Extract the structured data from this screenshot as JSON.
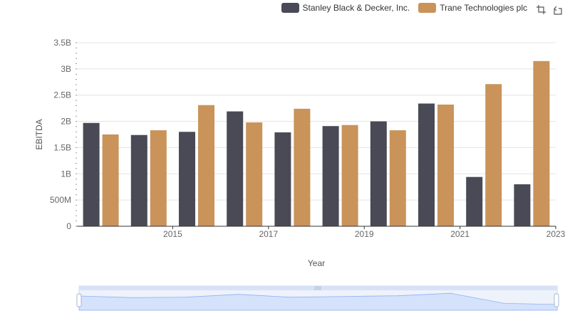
{
  "chart_data": {
    "type": "bar",
    "xlabel": "Year",
    "ylabel": "EBITDA",
    "categories": [
      "2014",
      "2015",
      "2016",
      "2017",
      "2018",
      "2019",
      "2020",
      "2021",
      "2022",
      "2023"
    ],
    "x_tick_labels": [
      "2015",
      "2017",
      "2019",
      "2021",
      "2023"
    ],
    "y_tick_labels": [
      "0",
      "500M",
      "1B",
      "1.5B",
      "2B",
      "2.5B",
      "3B",
      "3.5B"
    ],
    "ylim": [
      0,
      3500000000
    ],
    "grid": true,
    "legend_position": "top-right",
    "series": [
      {
        "name": "Stanley Black & Decker, Inc.",
        "color": "#4a4a56",
        "values": [
          1970000000,
          1740000000,
          1800000000,
          2190000000,
          1790000000,
          1910000000,
          2000000000,
          2340000000,
          940000000,
          800000000
        ]
      },
      {
        "name": "Trane Technologies plc",
        "color": "#c9935a",
        "values": [
          1750000000,
          1830000000,
          2310000000,
          1980000000,
          2240000000,
          1930000000,
          1830000000,
          2320000000,
          2710000000,
          3150000000
        ]
      }
    ]
  },
  "toolbox": {
    "icons": [
      "zoom-icon",
      "restore-icon"
    ]
  },
  "datazoom": {
    "start_percent": 0,
    "end_percent": 100
  }
}
